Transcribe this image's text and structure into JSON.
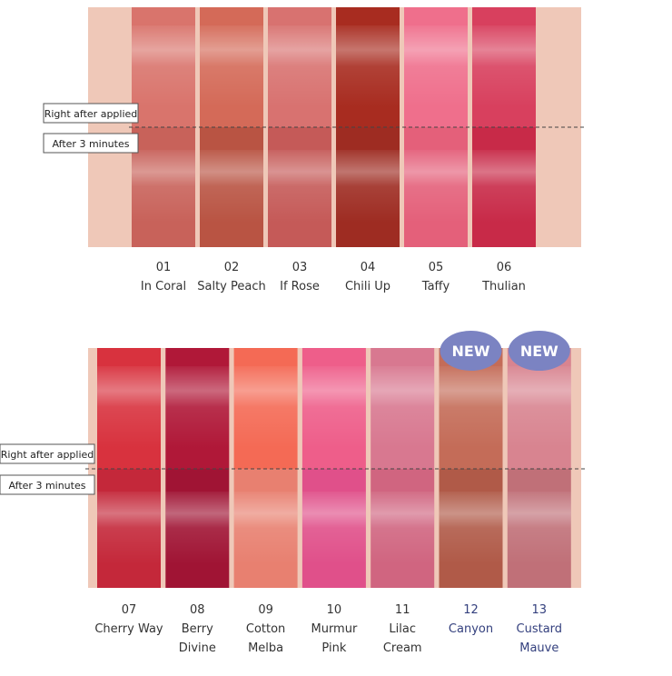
{
  "panels": [
    {
      "label_before": "Right after applied",
      "label_after": "After 3 minutes",
      "swatches": [
        {
          "number": "01",
          "name": [
            "In Coral"
          ],
          "color_top": "#d9746c",
          "color_bottom": "#c8625a"
        },
        {
          "number": "02",
          "name": [
            "Salty Peach"
          ],
          "color_top": "#d46a58",
          "color_bottom": "#b95443"
        },
        {
          "number": "03",
          "name": [
            "If Rose"
          ],
          "color_top": "#d87270",
          "color_bottom": "#c55a58"
        },
        {
          "number": "04",
          "name": [
            "Chili Up"
          ],
          "color_top": "#a82c20",
          "color_bottom": "#9e2c22"
        },
        {
          "number": "05",
          "name": [
            "Taffy"
          ],
          "color_top": "#ef6f8c",
          "color_bottom": "#e4607a"
        },
        {
          "number": "06",
          "name": [
            "Thulian"
          ],
          "color_top": "#d8405e",
          "color_bottom": "#c82a48"
        }
      ]
    },
    {
      "label_before": "Right after applied",
      "label_after": "After 3 minutes",
      "swatches": [
        {
          "number": "07",
          "name": [
            "Cherry Way"
          ],
          "color_top": "#d8323e",
          "color_bottom": "#c4283a"
        },
        {
          "number": "08",
          "name": [
            "Berry",
            "Divine"
          ],
          "color_top": "#b01838",
          "color_bottom": "#a01434"
        },
        {
          "number": "09",
          "name": [
            "Cotton",
            "Melba"
          ],
          "color_top": "#f46a55",
          "color_bottom": "#e88070"
        },
        {
          "number": "10",
          "name": [
            "Murmur",
            "Pink"
          ],
          "color_top": "#ee5e8a",
          "color_bottom": "#e0508a"
        },
        {
          "number": "11",
          "name": [
            "Lilac",
            "Cream"
          ],
          "color_top": "#d87890",
          "color_bottom": "#d06580"
        },
        {
          "number": "12",
          "name": [
            "Canyon"
          ],
          "color_top": "#c46c58",
          "color_bottom": "#b05a48",
          "badge": "NEW"
        },
        {
          "number": "13",
          "name": [
            "Custard",
            "Mauve"
          ],
          "color_top": "#d88490",
          "color_bottom": "#c07078",
          "badge": "NEW"
        }
      ]
    }
  ]
}
